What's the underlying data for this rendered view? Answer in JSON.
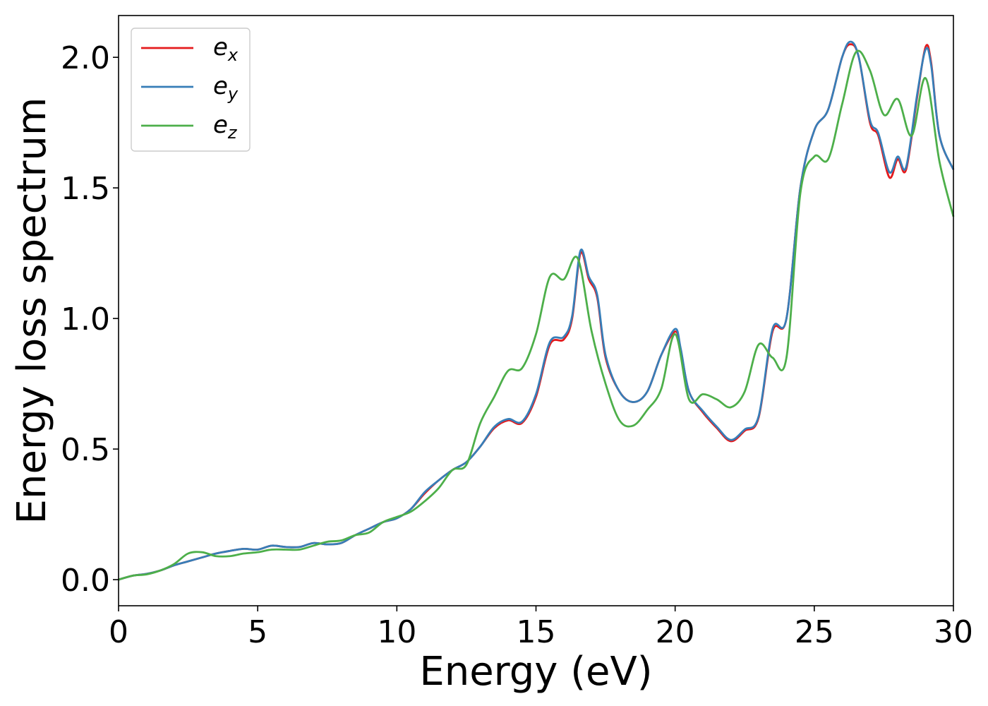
{
  "chart_data": {
    "type": "line",
    "title": "",
    "xlabel": "Energy (eV)",
    "ylabel": "Energy loss spectrum",
    "xlim": [
      0,
      30
    ],
    "ylim": [
      -0.1,
      2.16
    ],
    "xticks": [
      0,
      5,
      10,
      15,
      20,
      25,
      30
    ],
    "xtick_labels": [
      "0",
      "5",
      "10",
      "15",
      "20",
      "25",
      "30"
    ],
    "yticks": [
      0.0,
      0.5,
      1.0,
      1.5,
      2.0
    ],
    "ytick_labels": [
      "0.0",
      "0.5",
      "1.0",
      "1.5",
      "2.0"
    ],
    "grid": false,
    "legend_position": "top-left",
    "series": [
      {
        "name": "e_x",
        "legend_base": "e",
        "legend_sub": "x",
        "color": "#e41a1c",
        "x": [
          0,
          0.5,
          1,
          1.5,
          2,
          2.5,
          3,
          3.5,
          4,
          4.5,
          5,
          5.5,
          6,
          6.5,
          7,
          7.5,
          8,
          8.5,
          9,
          9.5,
          10,
          10.5,
          11,
          11.5,
          12,
          12.5,
          13,
          13.5,
          14,
          14.5,
          15,
          15.5,
          16,
          16.3,
          16.6,
          16.9,
          17.2,
          17.5,
          18,
          18.5,
          19,
          19.5,
          20,
          20.2,
          20.5,
          21,
          21.5,
          22,
          22.5,
          23,
          23.5,
          24,
          24.5,
          25,
          25.5,
          26,
          26.3,
          26.6,
          27,
          27.3,
          27.7,
          28,
          28.3,
          28.7,
          29,
          29.2,
          29.5,
          30
        ],
        "y": [
          0,
          0.015,
          0.022,
          0.035,
          0.055,
          0.07,
          0.085,
          0.1,
          0.11,
          0.118,
          0.115,
          0.13,
          0.125,
          0.125,
          0.14,
          0.135,
          0.14,
          0.17,
          0.195,
          0.22,
          0.235,
          0.27,
          0.33,
          0.38,
          0.42,
          0.45,
          0.51,
          0.58,
          0.61,
          0.6,
          0.7,
          0.9,
          0.92,
          1.0,
          1.25,
          1.15,
          1.08,
          0.85,
          0.72,
          0.68,
          0.72,
          0.86,
          0.95,
          0.88,
          0.72,
          0.64,
          0.58,
          0.53,
          0.57,
          0.62,
          0.95,
          1.0,
          1.5,
          1.72,
          1.8,
          2.0,
          2.05,
          2.0,
          1.75,
          1.7,
          1.54,
          1.61,
          1.57,
          1.85,
          2.04,
          1.98,
          1.7,
          1.57
        ]
      },
      {
        "name": "e_y",
        "legend_base": "e",
        "legend_sub": "y",
        "color": "#377eb8",
        "x": [
          0,
          0.5,
          1,
          1.5,
          2,
          2.5,
          3,
          3.5,
          4,
          4.5,
          5,
          5.5,
          6,
          6.5,
          7,
          7.5,
          8,
          8.5,
          9,
          9.5,
          10,
          10.5,
          11,
          11.5,
          12,
          12.5,
          13,
          13.5,
          14,
          14.5,
          15,
          15.5,
          16,
          16.3,
          16.6,
          16.9,
          17.2,
          17.5,
          18,
          18.5,
          19,
          19.5,
          20,
          20.2,
          20.5,
          21,
          21.5,
          22,
          22.5,
          23,
          23.5,
          24,
          24.5,
          25,
          25.5,
          26,
          26.3,
          26.6,
          27,
          27.3,
          27.7,
          28,
          28.3,
          28.7,
          29,
          29.2,
          29.5,
          30
        ],
        "y": [
          0,
          0.015,
          0.022,
          0.035,
          0.055,
          0.07,
          0.085,
          0.1,
          0.11,
          0.118,
          0.115,
          0.13,
          0.125,
          0.125,
          0.14,
          0.135,
          0.14,
          0.17,
          0.195,
          0.22,
          0.235,
          0.27,
          0.335,
          0.38,
          0.42,
          0.45,
          0.51,
          0.585,
          0.615,
          0.605,
          0.71,
          0.91,
          0.93,
          1.01,
          1.26,
          1.16,
          1.09,
          0.86,
          0.72,
          0.68,
          0.72,
          0.86,
          0.96,
          0.885,
          0.72,
          0.645,
          0.585,
          0.535,
          0.575,
          0.625,
          0.96,
          1.0,
          1.5,
          1.72,
          1.8,
          2.0,
          2.06,
          2.0,
          1.76,
          1.71,
          1.56,
          1.62,
          1.58,
          1.86,
          2.03,
          1.97,
          1.7,
          1.57
        ]
      },
      {
        "name": "e_z",
        "legend_base": "e",
        "legend_sub": "z",
        "color": "#4daf4a",
        "x": [
          0,
          0.5,
          1,
          1.5,
          2,
          2.5,
          3,
          3.5,
          4,
          4.5,
          5,
          5.5,
          6,
          6.5,
          7,
          7.5,
          8,
          8.5,
          9,
          9.5,
          10,
          10.5,
          11,
          11.5,
          12,
          12.5,
          13,
          13.5,
          14,
          14.5,
          15,
          15.5,
          16,
          16.5,
          17,
          17.5,
          18,
          18.5,
          19,
          19.5,
          20,
          20.5,
          21,
          21.5,
          22,
          22.5,
          23,
          23.5,
          24,
          24.5,
          25,
          25.5,
          26,
          26.5,
          27,
          27.5,
          28,
          28.5,
          29,
          29.5,
          30
        ],
        "y": [
          0,
          0.015,
          0.02,
          0.035,
          0.06,
          0.1,
          0.105,
          0.09,
          0.09,
          0.1,
          0.105,
          0.115,
          0.115,
          0.115,
          0.13,
          0.145,
          0.15,
          0.17,
          0.18,
          0.22,
          0.24,
          0.26,
          0.3,
          0.35,
          0.42,
          0.44,
          0.6,
          0.7,
          0.8,
          0.81,
          0.94,
          1.16,
          1.15,
          1.23,
          0.95,
          0.75,
          0.61,
          0.59,
          0.65,
          0.73,
          0.94,
          0.69,
          0.71,
          0.69,
          0.66,
          0.72,
          0.9,
          0.85,
          0.85,
          1.48,
          1.62,
          1.61,
          1.82,
          2.02,
          1.95,
          1.78,
          1.84,
          1.7,
          1.92,
          1.6,
          1.39
        ]
      }
    ]
  }
}
